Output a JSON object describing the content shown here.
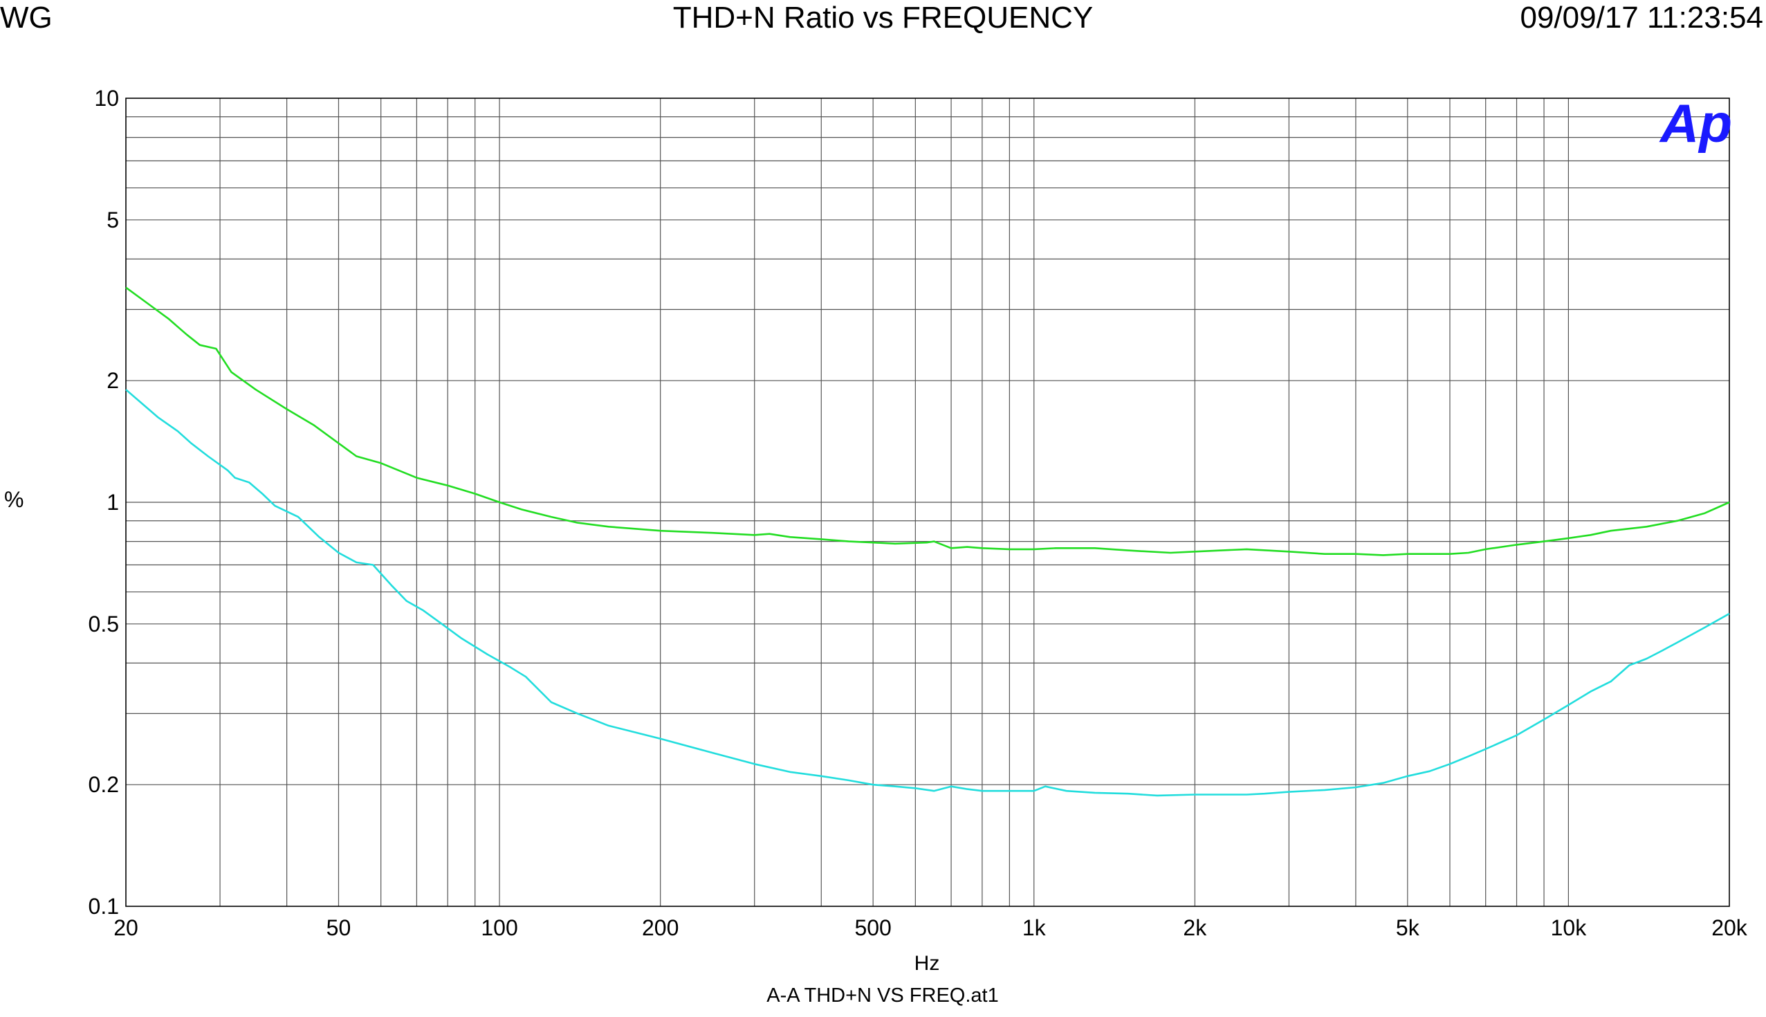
{
  "header": {
    "left": "WG",
    "title": "THD+N Ratio vs FREQUENCY",
    "right": "09/09/17 11:23:54"
  },
  "logo": "Ap",
  "footer": "A-A THD+N VS FREQ.at1",
  "chart_data": {
    "type": "line",
    "title": "THD+N Ratio vs FREQUENCY",
    "xlabel": "Hz",
    "ylabel": "%",
    "xscale": "log",
    "yscale": "log",
    "xlim": [
      20,
      20000
    ],
    "ylim": [
      0.1,
      10
    ],
    "grid": true,
    "legend": "none",
    "x_ticks": [
      {
        "v": 20,
        "label": "20"
      },
      {
        "v": 50,
        "label": "50"
      },
      {
        "v": 100,
        "label": "100"
      },
      {
        "v": 200,
        "label": "200"
      },
      {
        "v": 500,
        "label": "500"
      },
      {
        "v": 1000,
        "label": "1k"
      },
      {
        "v": 2000,
        "label": "2k"
      },
      {
        "v": 5000,
        "label": "5k"
      },
      {
        "v": 10000,
        "label": "10k"
      },
      {
        "v": 20000,
        "label": "20k"
      }
    ],
    "y_ticks": [
      {
        "v": 10,
        "label": "10"
      },
      {
        "v": 5,
        "label": "5"
      },
      {
        "v": 2,
        "label": "2"
      },
      {
        "v": 1,
        "label": "1"
      },
      {
        "v": 0.5,
        "label": "0.5"
      },
      {
        "v": 0.2,
        "label": "0.2"
      },
      {
        "v": 0.1,
        "label": "0.1"
      }
    ],
    "series": [
      {
        "color": "#22dd22",
        "points": [
          [
            20,
            3.4
          ],
          [
            22,
            3.1
          ],
          [
            24,
            2.85
          ],
          [
            26,
            2.6
          ],
          [
            27.5,
            2.45
          ],
          [
            29.5,
            2.4
          ],
          [
            31.5,
            2.1
          ],
          [
            35,
            1.9
          ],
          [
            40,
            1.7
          ],
          [
            45,
            1.55
          ],
          [
            50,
            1.4
          ],
          [
            54,
            1.3
          ],
          [
            60,
            1.25
          ],
          [
            70,
            1.15
          ],
          [
            80,
            1.1
          ],
          [
            90,
            1.05
          ],
          [
            100,
            1.0
          ],
          [
            110,
            0.96
          ],
          [
            125,
            0.92
          ],
          [
            140,
            0.89
          ],
          [
            160,
            0.87
          ],
          [
            200,
            0.85
          ],
          [
            250,
            0.84
          ],
          [
            300,
            0.83
          ],
          [
            320,
            0.835
          ],
          [
            350,
            0.82
          ],
          [
            400,
            0.81
          ],
          [
            450,
            0.8
          ],
          [
            500,
            0.795
          ],
          [
            550,
            0.79
          ],
          [
            630,
            0.795
          ],
          [
            650,
            0.8
          ],
          [
            700,
            0.77
          ],
          [
            750,
            0.775
          ],
          [
            800,
            0.77
          ],
          [
            900,
            0.765
          ],
          [
            1000,
            0.765
          ],
          [
            1100,
            0.77
          ],
          [
            1300,
            0.77
          ],
          [
            1500,
            0.76
          ],
          [
            1800,
            0.75
          ],
          [
            2000,
            0.755
          ],
          [
            2500,
            0.765
          ],
          [
            3000,
            0.755
          ],
          [
            3500,
            0.745
          ],
          [
            4000,
            0.745
          ],
          [
            4500,
            0.74
          ],
          [
            5000,
            0.745
          ],
          [
            6000,
            0.745
          ],
          [
            6500,
            0.75
          ],
          [
            7000,
            0.765
          ],
          [
            8000,
            0.785
          ],
          [
            9000,
            0.8
          ],
          [
            10000,
            0.815
          ],
          [
            11000,
            0.83
          ],
          [
            12000,
            0.85
          ],
          [
            14000,
            0.87
          ],
          [
            16000,
            0.9
          ],
          [
            18000,
            0.94
          ],
          [
            20000,
            1.0
          ]
        ]
      },
      {
        "color": "#22dddd",
        "points": [
          [
            20,
            1.9
          ],
          [
            21.5,
            1.75
          ],
          [
            23,
            1.62
          ],
          [
            25,
            1.5
          ],
          [
            26.5,
            1.4
          ],
          [
            28.5,
            1.3
          ],
          [
            31,
            1.2
          ],
          [
            32,
            1.15
          ],
          [
            34,
            1.12
          ],
          [
            36,
            1.05
          ],
          [
            38,
            0.98
          ],
          [
            42,
            0.92
          ],
          [
            46,
            0.82
          ],
          [
            50,
            0.75
          ],
          [
            54,
            0.71
          ],
          [
            58,
            0.7
          ],
          [
            63,
            0.62
          ],
          [
            67,
            0.57
          ],
          [
            72,
            0.54
          ],
          [
            78,
            0.5
          ],
          [
            85,
            0.46
          ],
          [
            95,
            0.42
          ],
          [
            105,
            0.39
          ],
          [
            112,
            0.37
          ],
          [
            125,
            0.32
          ],
          [
            140,
            0.3
          ],
          [
            160,
            0.28
          ],
          [
            200,
            0.26
          ],
          [
            250,
            0.24
          ],
          [
            300,
            0.225
          ],
          [
            350,
            0.215
          ],
          [
            400,
            0.21
          ],
          [
            450,
            0.205
          ],
          [
            500,
            0.2
          ],
          [
            550,
            0.198
          ],
          [
            600,
            0.196
          ],
          [
            650,
            0.193
          ],
          [
            700,
            0.198
          ],
          [
            750,
            0.195
          ],
          [
            800,
            0.193
          ],
          [
            900,
            0.193
          ],
          [
            1000,
            0.193
          ],
          [
            1050,
            0.198
          ],
          [
            1150,
            0.193
          ],
          [
            1300,
            0.191
          ],
          [
            1500,
            0.19
          ],
          [
            1700,
            0.188
          ],
          [
            2000,
            0.189
          ],
          [
            2500,
            0.189
          ],
          [
            2700,
            0.19
          ],
          [
            3000,
            0.192
          ],
          [
            3500,
            0.194
          ],
          [
            4000,
            0.197
          ],
          [
            4500,
            0.202
          ],
          [
            5000,
            0.21
          ],
          [
            5500,
            0.216
          ],
          [
            6000,
            0.225
          ],
          [
            6500,
            0.235
          ],
          [
            7000,
            0.245
          ],
          [
            8000,
            0.265
          ],
          [
            9000,
            0.29
          ],
          [
            10000,
            0.315
          ],
          [
            11000,
            0.34
          ],
          [
            12000,
            0.36
          ],
          [
            13000,
            0.395
          ],
          [
            14000,
            0.41
          ],
          [
            15000,
            0.43
          ],
          [
            16000,
            0.45
          ],
          [
            18000,
            0.49
          ],
          [
            20000,
            0.53
          ]
        ]
      }
    ]
  }
}
